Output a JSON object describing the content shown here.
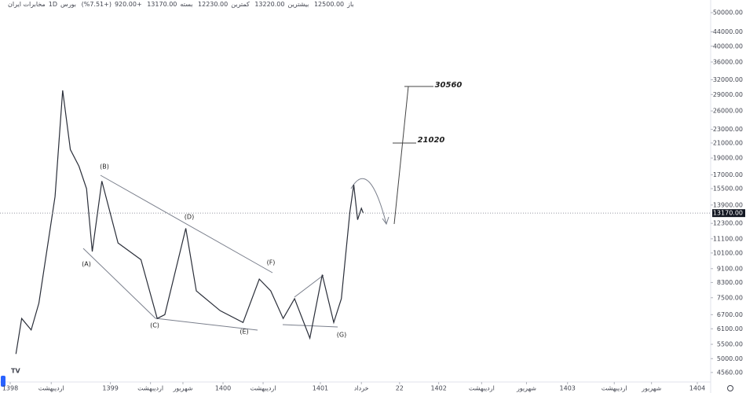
{
  "header": {
    "ohlc": [
      {
        "label": "باز",
        "value": "12500.00"
      },
      {
        "label": "بیشترین",
        "value": "13220.00"
      },
      {
        "label": "کمترین",
        "value": "12230.00"
      },
      {
        "label": "بسته",
        "value": "13170.00"
      }
    ],
    "change": "+920.00",
    "change_pct": "(+7.51%)",
    "exchange": "بورس",
    "interval": "1D",
    "symbol": "مخابرات ایران"
  },
  "chart_data": {
    "type": "line",
    "log_scale": true,
    "color": "#2a2e39",
    "series": [
      {
        "name": "مخابرات ایران",
        "color": "#2a2e39",
        "x": [
          0.6,
          1.2,
          2.2,
          3.0,
          4.7,
          5.5,
          6.3,
          7.2,
          8.0,
          8.6,
          9.6,
          11.3,
          13.7,
          15.4,
          16.2,
          18.4,
          19.5,
          22.0,
          24.4,
          26.1,
          27.3,
          28.6,
          29.8,
          31.4,
          32.7,
          33.9,
          34.7,
          35.6,
          36.0,
          36.4,
          36.8,
          37.0
        ],
        "values": [
          5160,
          6530,
          6050,
          7230,
          14700,
          29800,
          20100,
          18000,
          15500,
          10200,
          16300,
          10800,
          9660,
          6530,
          6700,
          11900,
          7850,
          6880,
          6360,
          8490,
          7850,
          6530,
          7450,
          5730,
          8740,
          6360,
          7450,
          13300,
          15900,
          12600,
          13600,
          13170
        ]
      }
    ],
    "last_price": {
      "value": 13170,
      "label": "13170.00"
    },
    "annotations": [
      "(A)",
      "(B)",
      "(C)",
      "(D)",
      "(E)",
      "(F)",
      "(G)",
      "30560",
      "21020"
    ],
    "ylim": [
      4280,
      54400
    ],
    "yticks": [
      {
        "value": 4560,
        "label": "4560.00"
      },
      {
        "value": 5000,
        "label": "5000.00"
      },
      {
        "value": 5500,
        "label": "5500.00"
      },
      {
        "value": 6100,
        "label": "6100.00"
      },
      {
        "value": 6700,
        "label": "6700.00"
      },
      {
        "value": 7500,
        "label": "7500.00"
      },
      {
        "value": 8300,
        "label": "8300.00"
      },
      {
        "value": 9100,
        "label": "9100.00"
      },
      {
        "value": 10100,
        "label": "10100.00"
      },
      {
        "value": 11100,
        "label": "11100.00"
      },
      {
        "value": 12300,
        "label": "12300.00"
      },
      {
        "value": 13900,
        "label": "13900.00"
      },
      {
        "value": 15500,
        "label": "15500.00"
      },
      {
        "value": 17000,
        "label": "17000.00"
      },
      {
        "value": 19000,
        "label": "19000.00"
      },
      {
        "value": 21000,
        "label": "21000.00"
      },
      {
        "value": 23000,
        "label": "23000.00"
      },
      {
        "value": 26000,
        "label": "26000.00"
      },
      {
        "value": 29000,
        "label": "29000.00"
      },
      {
        "value": 32000,
        "label": "32000.00"
      },
      {
        "value": 36000,
        "label": "36000.00"
      },
      {
        "value": 40000,
        "label": "40000.00"
      },
      {
        "value": 44000,
        "label": "44000.00"
      },
      {
        "value": 50000,
        "label": "50000.00"
      }
    ],
    "xlim": [
      -1.07,
      73.4
    ],
    "xticks": [
      {
        "value": 0,
        "label": "1398"
      },
      {
        "value": 4.3,
        "label": "اردیبهشت"
      },
      {
        "value": 10.5,
        "label": "1399"
      },
      {
        "value": 14.7,
        "label": "اردیبهشت"
      },
      {
        "value": 18.1,
        "label": "شهریور"
      },
      {
        "value": 22.3,
        "label": "1400"
      },
      {
        "value": 26.5,
        "label": "اردیبهشت"
      },
      {
        "value": 32.5,
        "label": "1401"
      },
      {
        "value": 36.8,
        "label": "خرداد"
      },
      {
        "value": 40.8,
        "label": "22"
      },
      {
        "value": 44.9,
        "label": "1402"
      },
      {
        "value": 49.4,
        "label": "اردیبهشت"
      },
      {
        "value": 54.1,
        "label": "شهریور"
      },
      {
        "value": 58.4,
        "label": "1403"
      },
      {
        "value": 63.3,
        "label": "اردیبهشت"
      },
      {
        "value": 67.2,
        "label": "شهریور"
      },
      {
        "value": 72.0,
        "label": "1404"
      }
    ]
  }
}
